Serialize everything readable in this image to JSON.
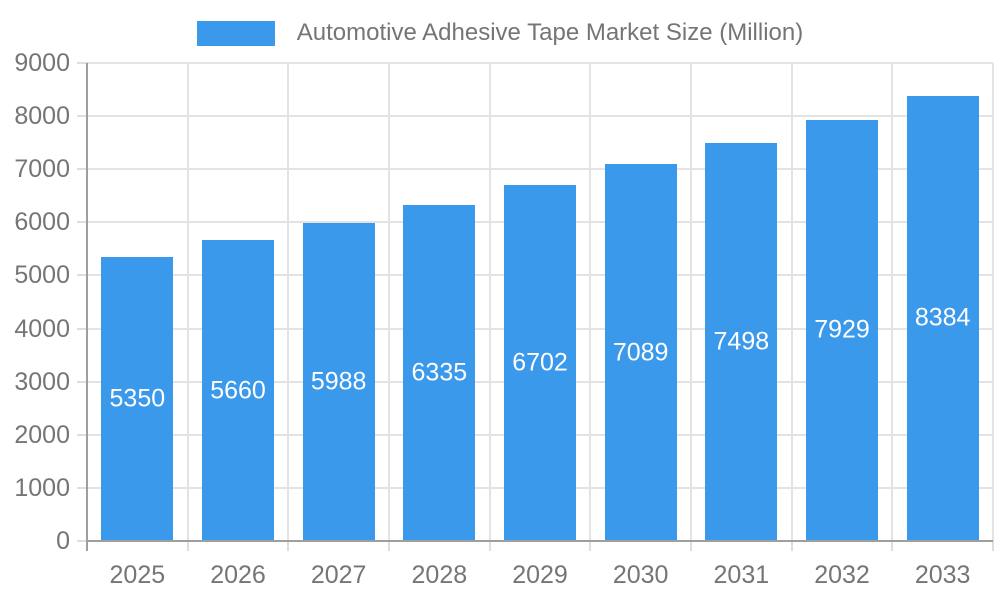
{
  "legend": {
    "label": "Automotive Adhesive Tape Market Size (Million)"
  },
  "colors": {
    "bar": "#3b99ec",
    "axis_line": "#9e9e9e",
    "gridline": "#e3e3e3",
    "tick": "#dedede",
    "label_text": "#757575",
    "value_label_text": "#ffffff",
    "background": "#ffffff"
  },
  "chart_data": {
    "type": "bar",
    "title": "Automotive Adhesive Tape Market Size (Million)",
    "categories": [
      "2025",
      "2026",
      "2027",
      "2028",
      "2029",
      "2030",
      "2031",
      "2032",
      "2033"
    ],
    "values": [
      5350,
      5660,
      5988,
      6335,
      6702,
      7089,
      7498,
      7929,
      8384
    ],
    "xlabel": "",
    "ylabel": "",
    "ylim": [
      0,
      9000
    ],
    "yticks": [
      0,
      1000,
      2000,
      3000,
      4000,
      5000,
      6000,
      7000,
      8000,
      9000
    ],
    "grid": true,
    "legend_position": "top",
    "value_label_position": "inside-center"
  }
}
